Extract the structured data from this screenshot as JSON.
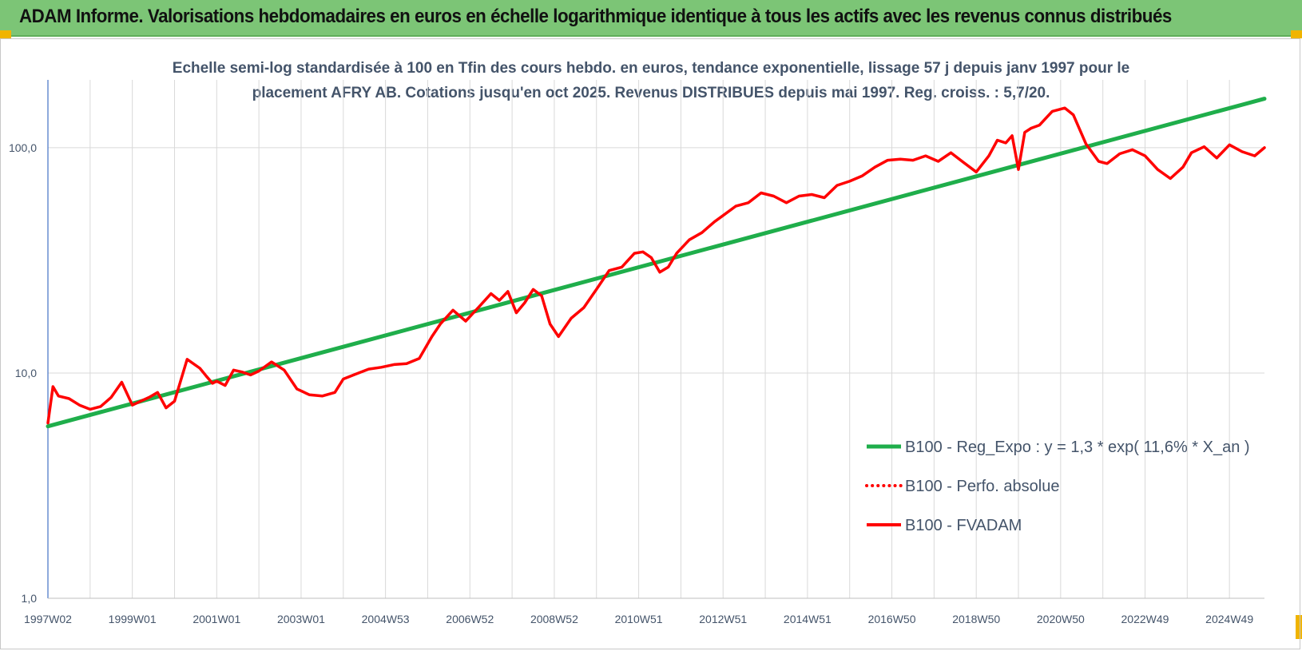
{
  "banner": {
    "title": "ADAM Informe. Valorisations hebdomadaires en euros en échelle logarithmique identique à tous les actifs avec les revenus connus distribués"
  },
  "chart_data": {
    "type": "line",
    "title": "Echelle semi-log standardisée à 100 en Tfin des cours hebdo. en euros, tendance exponentielle, lissage 57 j depuis janv 1997 pour le placement AFRY AB. Cotations jusqu'en oct 2025. Revenus DISTRIBUES depuis mai 1997. Reg. croiss. : 5,7/20.",
    "yscale": "log",
    "ylim": [
      1,
      200
    ],
    "yticks": [
      {
        "value": 1,
        "label": "1,0"
      },
      {
        "value": 10,
        "label": "10,0"
      },
      {
        "value": 100,
        "label": "100,0"
      }
    ],
    "xlim": [
      1997.0,
      2025.83
    ],
    "xticks": [
      "1997W02",
      "1999W01",
      "2001W01",
      "2003W01",
      "2004W53",
      "2006W52",
      "2008W52",
      "2010W51",
      "2012W51",
      "2014W51",
      "2016W50",
      "2018W50",
      "2020W50",
      "2022W49",
      "2024W49"
    ],
    "xtick_years": [
      1997.0,
      1999.0,
      2001.0,
      2003.0,
      2005.0,
      2007.0,
      2009.0,
      2011.0,
      2013.0,
      2015.0,
      2017.0,
      2019.0,
      2021.0,
      2023.0,
      2025.0
    ],
    "grid": true,
    "legend_position": "bottom-right",
    "series": [
      {
        "name": "B100 - Reg_Expo : y = 1,3 * exp( 11,6% *  X_an )",
        "color": "#1fae4b",
        "style": "solid",
        "x": [
          1997.0,
          2025.83
        ],
        "y": [
          5.8,
          165
        ]
      },
      {
        "name": "B100 - Perfo. absolue",
        "color": "#ff0000",
        "style": "dotted",
        "x": [],
        "y": []
      },
      {
        "name": "B100 - FVADAM",
        "color": "#ff0000",
        "style": "solid",
        "x": [
          1997.0,
          1997.12,
          1997.25,
          1997.5,
          1997.75,
          1998.0,
          1998.25,
          1998.5,
          1998.75,
          1999.0,
          1999.2,
          1999.4,
          1999.6,
          1999.8,
          2000.0,
          2000.3,
          2000.6,
          2000.75,
          2000.9,
          2001.0,
          2001.2,
          2001.4,
          2001.6,
          2001.8,
          2002.0,
          2002.3,
          2002.6,
          2002.9,
          2003.2,
          2003.5,
          2003.8,
          2004.0,
          2004.3,
          2004.6,
          2004.9,
          2005.2,
          2005.5,
          2005.8,
          2006.1,
          2006.3,
          2006.6,
          2006.9,
          2007.2,
          2007.5,
          2007.7,
          2007.9,
          2008.1,
          2008.3,
          2008.5,
          2008.7,
          2008.9,
          2009.1,
          2009.4,
          2009.7,
          2010.0,
          2010.3,
          2010.6,
          2010.9,
          2011.1,
          2011.3,
          2011.5,
          2011.7,
          2011.9,
          2012.2,
          2012.5,
          2012.8,
          2013.0,
          2013.3,
          2013.6,
          2013.9,
          2014.2,
          2014.5,
          2014.8,
          2015.1,
          2015.4,
          2015.7,
          2016.0,
          2016.3,
          2016.6,
          2016.9,
          2017.2,
          2017.5,
          2017.8,
          2018.1,
          2018.4,
          2018.7,
          2019.0,
          2019.3,
          2019.5,
          2019.7,
          2019.85,
          2020.0,
          2020.15,
          2020.3,
          2020.5,
          2020.8,
          2021.1,
          2021.3,
          2021.6,
          2021.9,
          2022.1,
          2022.4,
          2022.7,
          2023.0,
          2023.3,
          2023.6,
          2023.9,
          2024.1,
          2024.4,
          2024.7,
          2025.0,
          2025.3,
          2025.6,
          2025.83
        ],
        "y": [
          6.0,
          8.7,
          7.9,
          7.7,
          7.2,
          6.9,
          7.1,
          7.8,
          9.1,
          7.2,
          7.5,
          7.8,
          8.2,
          7.0,
          7.5,
          11.5,
          10.5,
          9.7,
          9.0,
          9.2,
          8.8,
          10.3,
          10.1,
          9.8,
          10.2,
          11.2,
          10.3,
          8.5,
          8.0,
          7.9,
          8.2,
          9.4,
          9.9,
          10.4,
          10.6,
          10.9,
          11.0,
          11.6,
          14.5,
          16.5,
          19.0,
          17.0,
          19.5,
          22.5,
          21.0,
          23.0,
          18.5,
          20.5,
          23.5,
          22.0,
          16.5,
          14.5,
          17.5,
          19.5,
          23.5,
          28.5,
          29.5,
          34.0,
          34.5,
          32.5,
          28.0,
          29.5,
          34.0,
          39.0,
          42.0,
          47.0,
          50.0,
          55.0,
          57.0,
          63.0,
          61.0,
          57.0,
          61.0,
          62.0,
          60.0,
          68.0,
          71.0,
          75.0,
          82.0,
          88.0,
          89.0,
          88.0,
          92.0,
          87.0,
          95.0,
          86.0,
          78.0,
          92.0,
          108.0,
          105.0,
          113.0,
          80.0,
          117.0,
          122.0,
          126.0,
          145.0,
          150.0,
          140.0,
          104.0,
          87.0,
          85.0,
          94.0,
          98.0,
          92.0,
          80.0,
          73.0,
          82.0,
          95.0,
          101.0,
          90.0,
          103.0,
          96.0,
          92.0,
          100.0
        ]
      }
    ]
  }
}
